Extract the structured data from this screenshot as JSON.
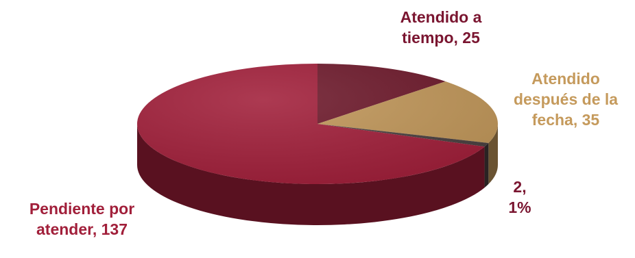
{
  "chart_data": {
    "type": "pie",
    "three_d": true,
    "legend": "none",
    "title": "",
    "slices": [
      {
        "name": "Atendido a tiempo",
        "value": 25,
        "label_line1": "Atendido a",
        "label_line2": "tiempo, 25",
        "color": "#6e1a2c",
        "label_color": "#7a1530"
      },
      {
        "name": "Atendido después de la fecha",
        "value": 35,
        "label_line1": "Atendido",
        "label_line2": "después de la",
        "label_line3": "fecha, 35",
        "color": "#c1975a",
        "label_color": "#c59a5c"
      },
      {
        "name": "",
        "value": 2,
        "label_line1": "2,",
        "label_line2": "1%",
        "color": "#4a4040",
        "label_color": "#7a1530"
      },
      {
        "name": "Pendiente por atender",
        "value": 137,
        "label_line1": "Pendiente por",
        "label_line2": "atender, 137",
        "color": "#a11f3a",
        "label_color": "#a11f3a"
      }
    ]
  }
}
